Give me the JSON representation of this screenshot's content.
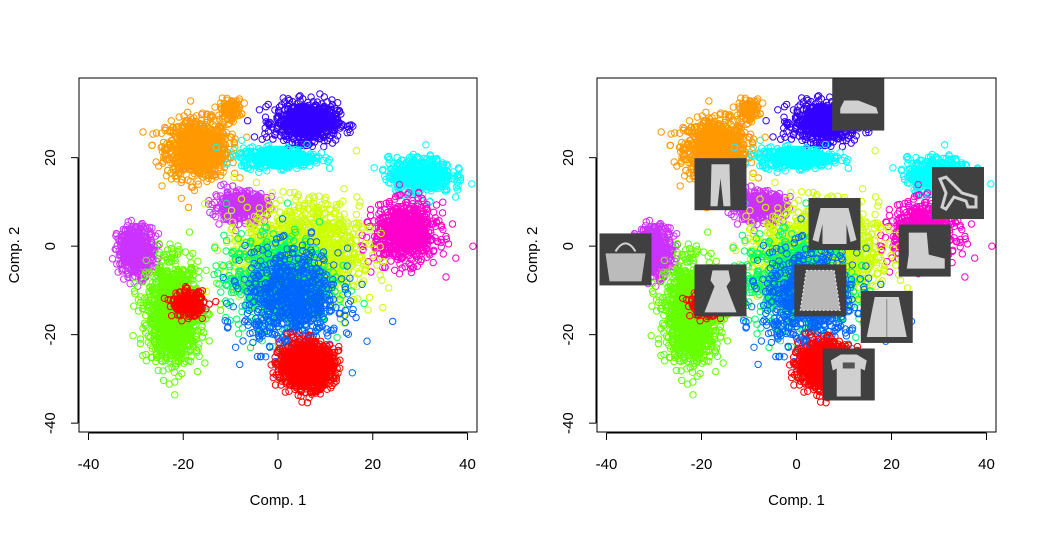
{
  "chart_data": [
    {
      "type": "scatter",
      "xlabel": "Comp. 1",
      "ylabel": "Comp. 2",
      "xlim": [
        -42,
        42
      ],
      "ylim": [
        -42,
        38
      ],
      "x_ticks": [
        -40,
        -20,
        0,
        20,
        40
      ],
      "y_ticks": [
        -40,
        -20,
        0,
        20
      ],
      "x_tick_labels": [
        "-40",
        "-20",
        "0",
        "20",
        "40"
      ],
      "y_tick_labels": [
        "-40",
        "-20",
        "0",
        "20"
      ],
      "marker": "open circle",
      "grid": false,
      "clusters": [
        {
          "color": "#FF9900",
          "center": [
            -17,
            22
          ],
          "spread": [
            6,
            6
          ],
          "points": 900
        },
        {
          "color": "#FF9900",
          "center": [
            -10,
            31
          ],
          "spread": [
            2,
            2
          ],
          "points": 120
        },
        {
          "color": "#3300FF",
          "center": [
            6,
            28
          ],
          "spread": [
            6,
            4
          ],
          "points": 700
        },
        {
          "color": "#00FFFF",
          "center": [
            0,
            20
          ],
          "spread": [
            7,
            2
          ],
          "points": 450
        },
        {
          "color": "#00FFFF",
          "center": [
            30,
            16
          ],
          "spread": [
            6,
            3.5
          ],
          "points": 550
        },
        {
          "color": "#FF00CC",
          "center": [
            27,
            3
          ],
          "spread": [
            6,
            6
          ],
          "points": 750
        },
        {
          "color": "#CC33FF",
          "center": [
            -30,
            -1
          ],
          "spread": [
            3.5,
            5
          ],
          "points": 450
        },
        {
          "color": "#CC33FF",
          "center": [
            -8,
            9
          ],
          "spread": [
            5,
            3
          ],
          "points": 380
        },
        {
          "color": "#66FF00",
          "center": [
            -22,
            -15
          ],
          "spread": [
            5,
            10
          ],
          "points": 1300
        },
        {
          "color": "#CCFF00",
          "center": [
            5,
            -2
          ],
          "spread": [
            11,
            10
          ],
          "points": 1500
        },
        {
          "color": "#00FF66",
          "center": [
            0,
            -8
          ],
          "spread": [
            10,
            9
          ],
          "points": 700
        },
        {
          "color": "#0066FF",
          "center": [
            3,
            -12
          ],
          "spread": [
            9,
            10
          ],
          "points": 800
        },
        {
          "color": "#FF0000",
          "center": [
            6,
            -27
          ],
          "spread": [
            5,
            4.5
          ],
          "points": 1200
        },
        {
          "color": "#FF0000",
          "center": [
            -19,
            -13
          ],
          "spread": [
            3,
            2.5
          ],
          "points": 220
        }
      ]
    },
    {
      "type": "scatter",
      "xlabel": "Comp. 1",
      "ylabel": "Comp. 2",
      "xlim": [
        -42,
        42
      ],
      "ylim": [
        -42,
        38
      ],
      "x_ticks": [
        -40,
        -20,
        0,
        20,
        40
      ],
      "y_ticks": [
        -40,
        -20,
        0,
        20
      ],
      "x_tick_labels": [
        "-40",
        "-20",
        "0",
        "20",
        "40"
      ],
      "y_tick_labels": [
        "-40",
        "-20",
        "0",
        "20"
      ],
      "marker": "open circle",
      "grid": false,
      "thumbnails": [
        {
          "item": "sneaker",
          "at": [
            13,
            32
          ]
        },
        {
          "item": "trousers",
          "at": [
            -16,
            14
          ]
        },
        {
          "item": "sandal",
          "at": [
            34,
            12
          ]
        },
        {
          "item": "pullover",
          "at": [
            8,
            5
          ]
        },
        {
          "item": "ankle-boot",
          "at": [
            27,
            -1
          ]
        },
        {
          "item": "bag",
          "at": [
            -36,
            -3
          ]
        },
        {
          "item": "dress",
          "at": [
            -16,
            -10
          ]
        },
        {
          "item": "shirt",
          "at": [
            5,
            -10
          ]
        },
        {
          "item": "coat",
          "at": [
            19,
            -16
          ]
        },
        {
          "item": "t-shirt",
          "at": [
            11,
            -29
          ]
        }
      ]
    }
  ]
}
